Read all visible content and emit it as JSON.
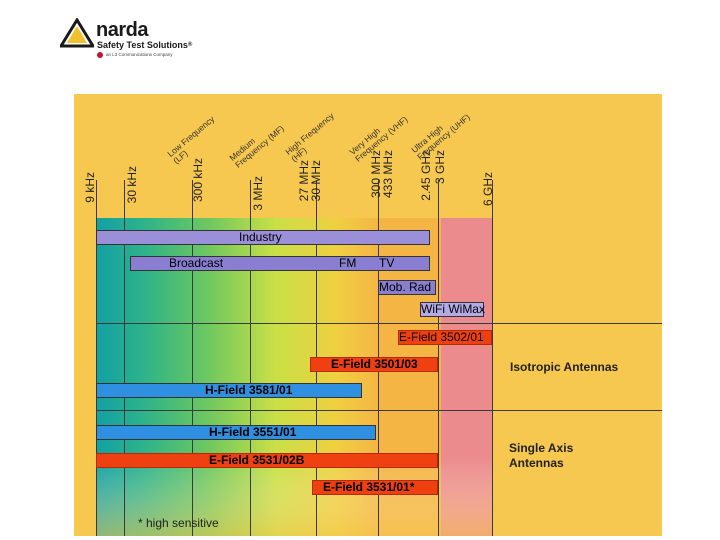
{
  "header": {
    "brand": "narda",
    "tagline": "Safety Test Solutions",
    "registered": "®",
    "company": "an L3 Communications Company"
  },
  "colors": {
    "panel": "#f7c84f",
    "industry": "#9b8fd9",
    "fm_tv": "#8a7ed0",
    "wifi": "#b3aae6",
    "efield": "#ee4010",
    "hfield": "#2f8fe0",
    "microwave": "#ec8b8d"
  },
  "frequencies": {
    "f9k": "9 kHz",
    "f30k": "30 kHz",
    "f300k": "300 kHz",
    "f3m": "3 MHz",
    "f27m": "27 MHz",
    "f30m": "30 MHz",
    "f300m": "300 MHz",
    "f433m": "433 MHz",
    "f245g": "2.45 GHz",
    "f3g": "3 GHz",
    "f6g": "6 GHz"
  },
  "bands": {
    "lf": {
      "line1": "Low Frequency",
      "line2": "(LF)"
    },
    "mf": {
      "line1": "Medium",
      "line2": "Frequency (MF)"
    },
    "hf": {
      "line1": "High Frequency",
      "line2": "(HF)"
    },
    "vhf": {
      "line1": "Very High",
      "line2": "Frequency (VHF)"
    },
    "uhf": {
      "line1": "Ultra High",
      "line2": "Frequency (UHF)"
    }
  },
  "bars": {
    "industry": "Industry",
    "broadcast": "Broadcast",
    "fm": "FM",
    "tv": "TV",
    "mob_rad": "Mob. Rad",
    "wifi": "WiFi WiMax",
    "ef3502": "E-Field 3502/01",
    "ef3501": "E-Field 3501/03",
    "hf3581": "H-Field 3581/01",
    "hf3551": "H-Field 3551/01",
    "ef3531b": "E-Field 3531/02B",
    "ef3531": "E-Field 3531/01*"
  },
  "annotations": {
    "isotropic": "Isotropic Antennas",
    "single_axis_1": "Single Axis",
    "single_axis_2": "Antennas",
    "footnote": "* high sensitive"
  }
}
